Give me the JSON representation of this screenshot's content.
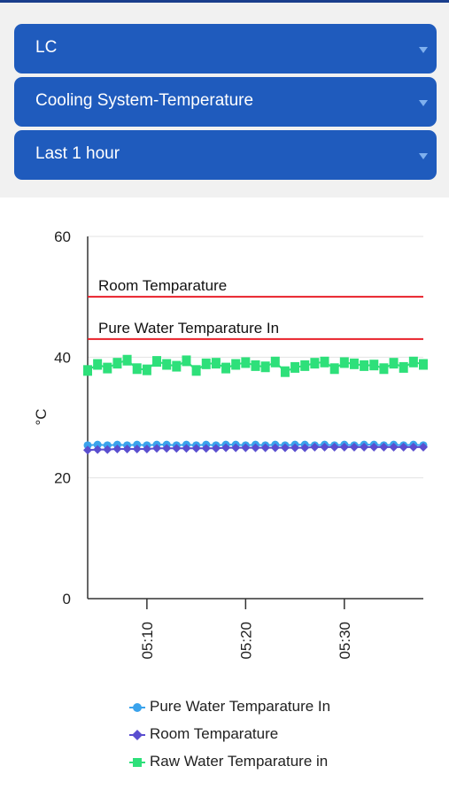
{
  "filters": {
    "site": "LC",
    "metric": "Cooling System-Temperature",
    "range": "Last 1 hour"
  },
  "chart_data": {
    "type": "line",
    "xlabel": "",
    "ylabel": "°C",
    "ylim": [
      0,
      60
    ],
    "yticks": [
      0,
      20,
      40,
      60
    ],
    "xlim": [
      "05:04",
      "05:38"
    ],
    "xticks": [
      "05:10",
      "05:20",
      "05:30"
    ],
    "grid": true,
    "legend_position": "bottom",
    "reference_lines": [
      {
        "label": "Room Temparature",
        "value": 50,
        "color": "#e8202a"
      },
      {
        "label": "Pure Water Temparature In",
        "value": 43,
        "color": "#e8202a"
      }
    ],
    "series": [
      {
        "name": "Pure Water Temparature In",
        "color": "#3aa3ec",
        "marker": "circle",
        "x": [
          "05:04",
          "05:05",
          "05:06",
          "05:07",
          "05:08",
          "05:09",
          "05:10",
          "05:11",
          "05:12",
          "05:13",
          "05:14",
          "05:15",
          "05:16",
          "05:17",
          "05:18",
          "05:19",
          "05:20",
          "05:21",
          "05:22",
          "05:23",
          "05:24",
          "05:25",
          "05:26",
          "05:27",
          "05:28",
          "05:29",
          "05:30",
          "05:31",
          "05:32",
          "05:33",
          "05:34",
          "05:35",
          "05:36",
          "05:37",
          "05:38"
        ],
        "values": [
          25.4,
          25.5,
          25.4,
          25.5,
          25.4,
          25.5,
          25.4,
          25.5,
          25.5,
          25.4,
          25.5,
          25.4,
          25.5,
          25.4,
          25.5,
          25.5,
          25.4,
          25.5,
          25.4,
          25.5,
          25.4,
          25.5,
          25.5,
          25.4,
          25.5,
          25.4,
          25.5,
          25.4,
          25.5,
          25.5,
          25.4,
          25.5,
          25.4,
          25.5,
          25.4
        ]
      },
      {
        "name": "Room Temparature",
        "color": "#5a4ecf",
        "marker": "diamond",
        "x": [
          "05:04",
          "05:05",
          "05:06",
          "05:07",
          "05:08",
          "05:09",
          "05:10",
          "05:11",
          "05:12",
          "05:13",
          "05:14",
          "05:15",
          "05:16",
          "05:17",
          "05:18",
          "05:19",
          "05:20",
          "05:21",
          "05:22",
          "05:23",
          "05:24",
          "05:25",
          "05:26",
          "05:27",
          "05:28",
          "05:29",
          "05:30",
          "05:31",
          "05:32",
          "05:33",
          "05:34",
          "05:35",
          "05:36",
          "05:37",
          "05:38"
        ],
        "values": [
          24.6,
          24.7,
          24.7,
          24.8,
          24.8,
          24.8,
          24.8,
          24.9,
          24.9,
          24.9,
          24.9,
          24.9,
          24.9,
          24.9,
          25.0,
          25.0,
          25.0,
          25.0,
          25.0,
          25.0,
          25.0,
          25.0,
          25.0,
          25.1,
          25.1,
          25.1,
          25.1,
          25.1,
          25.1,
          25.1,
          25.1,
          25.1,
          25.1,
          25.1,
          25.1
        ]
      },
      {
        "name": "Raw Water Temparature in",
        "color": "#2ee07a",
        "marker": "square",
        "x": [
          "05:04",
          "05:05",
          "05:06",
          "05:07",
          "05:08",
          "05:09",
          "05:10",
          "05:11",
          "05:12",
          "05:13",
          "05:14",
          "05:15",
          "05:16",
          "05:17",
          "05:18",
          "05:19",
          "05:20",
          "05:21",
          "05:22",
          "05:23",
          "05:24",
          "05:25",
          "05:26",
          "05:27",
          "05:28",
          "05:29",
          "05:30",
          "05:31",
          "05:32",
          "05:33",
          "05:34",
          "05:35",
          "05:36",
          "05:37",
          "05:38"
        ],
        "values": [
          37.8,
          38.8,
          38.2,
          39.0,
          39.5,
          38.1,
          37.9,
          39.3,
          38.8,
          38.5,
          39.4,
          37.8,
          38.9,
          39.0,
          38.2,
          38.8,
          39.1,
          38.6,
          38.4,
          39.2,
          37.6,
          38.3,
          38.6,
          39.0,
          39.2,
          38.1,
          39.1,
          38.9,
          38.6,
          38.7,
          38.1,
          39.0,
          38.3,
          39.2,
          38.8
        ]
      }
    ]
  }
}
